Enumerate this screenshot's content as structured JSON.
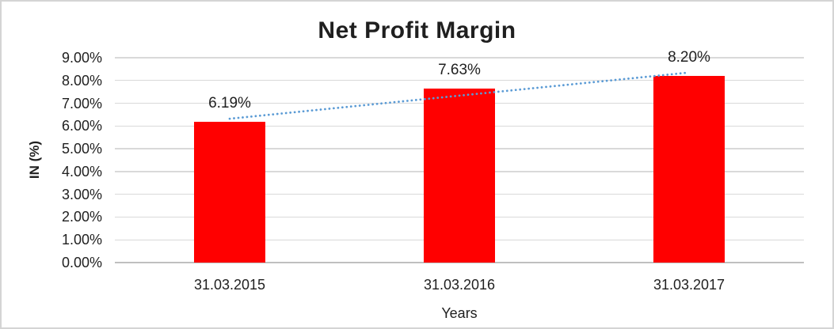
{
  "chart_data": {
    "type": "bar",
    "title": "Net Profit Margin",
    "xlabel": "Years",
    "ylabel": "IN (%)",
    "categories": [
      "31.03.2015",
      "31.03.2016",
      "31.03.2017"
    ],
    "values": [
      6.19,
      7.63,
      8.2
    ],
    "data_labels": [
      "6.19%",
      "7.63%",
      "8.20%"
    ],
    "y_tick_labels": [
      "0.00%",
      "1.00%",
      "2.00%",
      "3.00%",
      "4.00%",
      "5.00%",
      "6.00%",
      "7.00%",
      "8.00%",
      "9.00%"
    ],
    "ylim": [
      0,
      9
    ],
    "grid": true,
    "legend": "none",
    "bar_color": "#FF0000",
    "gridline_color": "#D9D9D9",
    "axis_line_color": "#BFBFBF",
    "text_color": "#1F1F1F",
    "trendline": {
      "type": "linear",
      "style": "dotted",
      "color": "#5B9BD5",
      "start_value": 6.32,
      "end_value": 8.35
    }
  }
}
